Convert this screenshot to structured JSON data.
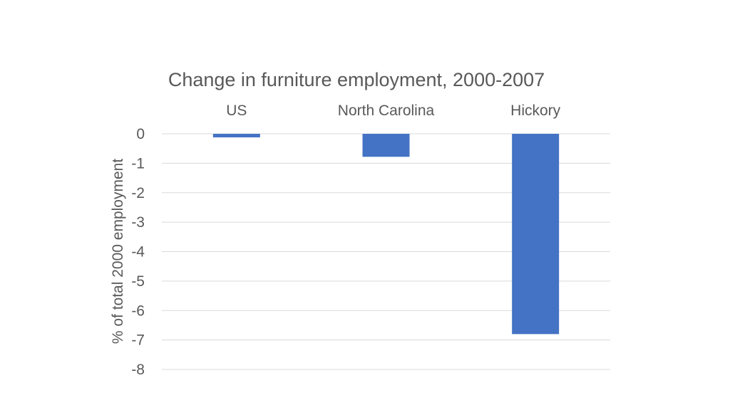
{
  "chart_data": {
    "type": "bar",
    "title": "Change in furniture employment, 2000-2007",
    "xlabel": "",
    "ylabel": "% of total 2000 employment",
    "categories": [
      "US",
      "North Carolina",
      "Hickory"
    ],
    "values": [
      -0.12,
      -0.78,
      -6.8
    ],
    "ylim": [
      -8,
      0
    ],
    "yticks": [
      0,
      -1,
      -2,
      -3,
      -4,
      -5,
      -6,
      -7,
      -8
    ],
    "grid": true,
    "category_axis_position": "top",
    "bar_color": "#4472c4"
  }
}
